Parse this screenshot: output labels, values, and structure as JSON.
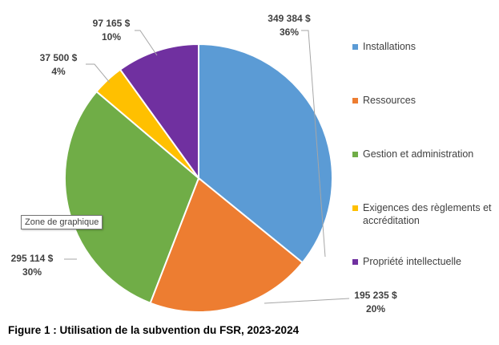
{
  "chart_data": {
    "type": "pie",
    "categories": [
      "Installations",
      "Ressources",
      "Gestion et administration",
      "Exigences des règlements et accréditation",
      "Propriété intellectuelle"
    ],
    "values": [
      349384,
      195235,
      295114,
      37500,
      97165
    ],
    "value_labels": [
      "349 384  $",
      "195 235  $",
      "295 114  $",
      "37 500  $",
      "97 165  $"
    ],
    "percent_labels": [
      "36%",
      "20%",
      "30%",
      "4%",
      "10%"
    ],
    "colors": [
      "#5B9BD5",
      "#ED7D31",
      "#70AD47",
      "#FFC000",
      "#7030A0"
    ],
    "legend": "right"
  },
  "tooltip": "Zone de graphique",
  "caption": "Figure 1 : Utilisation de la subvention du FSR, 2023-2024"
}
